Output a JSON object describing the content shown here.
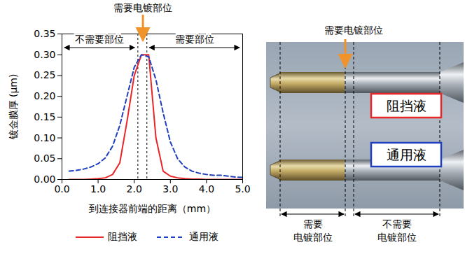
{
  "chart_data": {
    "type": "line",
    "x_label": "到连接器前端的距离（mm）",
    "y_label": "镀金膜厚 (μm)",
    "xlim": [
      0,
      5
    ],
    "xticks": [
      {
        "value": 0,
        "label": "0.0"
      },
      {
        "value": 1,
        "label": "1.0"
      },
      {
        "value": 2,
        "label": "2.0"
      },
      {
        "value": 3,
        "label": "3.0"
      },
      {
        "value": 4,
        "label": "4.0"
      },
      {
        "value": 5,
        "label": "5.0"
      }
    ],
    "ylim": [
      0,
      0.35
    ],
    "yticks": [
      {
        "value": 0,
        "label": "0.00"
      },
      {
        "value": 0.05,
        "label": "0.05"
      },
      {
        "value": 0.1,
        "label": "0.10"
      },
      {
        "value": 0.15,
        "label": "0.15"
      },
      {
        "value": 0.2,
        "label": "0.20"
      },
      {
        "value": 0.25,
        "label": "0.25"
      },
      {
        "value": 0.3,
        "label": "0.30"
      },
      {
        "value": 0.35,
        "label": "0.35"
      }
    ],
    "grid": false,
    "legend": "bottom",
    "x": [
      0.2,
      0.4,
      0.6,
      0.8,
      1.0,
      1.2,
      1.4,
      1.6,
      1.8,
      2.0,
      2.2,
      2.4,
      2.6,
      2.8,
      3.0,
      3.2,
      3.4,
      3.6,
      3.8,
      4.0,
      4.2,
      4.4,
      4.6,
      4.8,
      5.0
    ],
    "series": [
      {
        "name": "阻挡液",
        "color": "#e8262a",
        "line_style": "solid",
        "values": [
          0,
          0,
          0,
          0.001,
          0.002,
          0.004,
          0.012,
          0.04,
          0.14,
          0.25,
          0.3,
          0.3,
          0.1,
          0.02,
          0.008,
          0.004,
          0.002,
          0.001,
          0.001,
          0,
          0,
          0,
          0,
          0,
          0
        ]
      },
      {
        "name": "通用液",
        "color": "#1f3fbf",
        "line_style": "dashed",
        "values": [
          0.02,
          0.022,
          0.025,
          0.03,
          0.038,
          0.052,
          0.08,
          0.13,
          0.2,
          0.27,
          0.3,
          0.295,
          0.24,
          0.16,
          0.09,
          0.05,
          0.03,
          0.02,
          0.015,
          0.012,
          0.01,
          0.01,
          0.008,
          0.006,
          0.005
        ]
      }
    ],
    "annotations": {
      "target": {
        "text": "需要电镀部位",
        "x": 2.25
      },
      "boundaries": [
        2.1,
        2.35
      ],
      "regions": [
        {
          "text": "不需要部位",
          "from": 0,
          "to": 2.1
        },
        {
          "text": "需要部位",
          "from": 2.35,
          "to": 5
        }
      ]
    }
  },
  "photo": {
    "annotation": "需要电镀部位",
    "samples": [
      {
        "name": "阻挡液",
        "color": "#e8262a"
      },
      {
        "name": "通用液",
        "color": "#1f3fbf"
      }
    ],
    "regions": [
      [
        "需要",
        "电镀部位"
      ],
      [
        "不需要",
        "电镀部位"
      ]
    ]
  }
}
